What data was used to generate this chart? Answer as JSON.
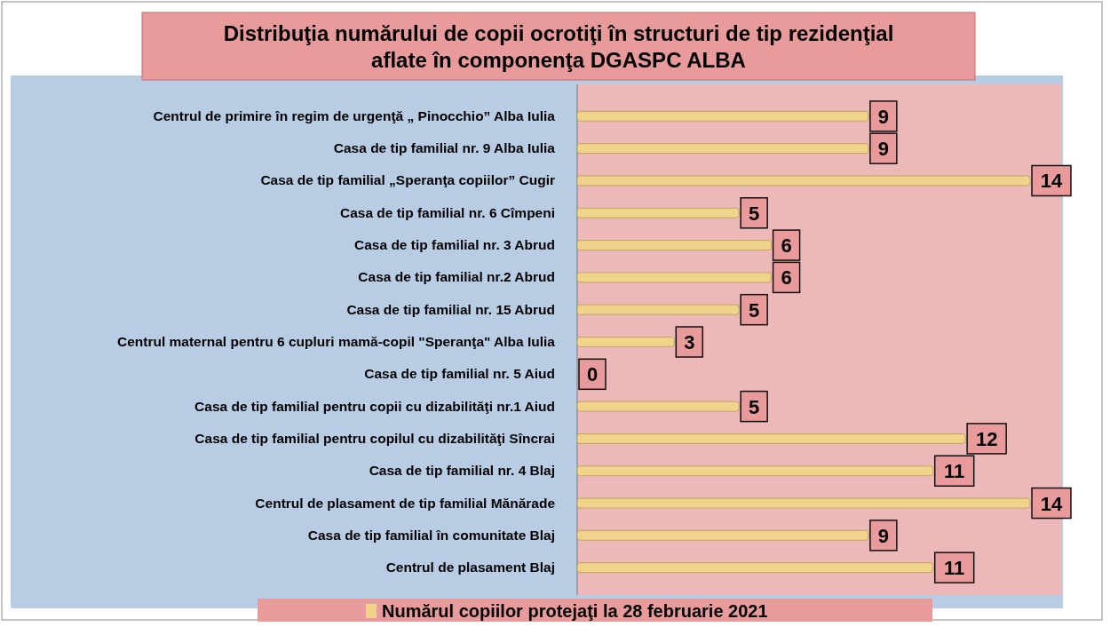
{
  "chart_data": {
    "type": "bar",
    "orientation": "horizontal",
    "title": "Distribuţia numărului de copii ocrotiţi în structuri de tip rezidenţial aflate în componenţa DGASPC ALBA",
    "categories": [
      "Centrul de primire în regim de urgenţă „ Pinocchio” Alba Iulia",
      "Casa de tip familial  nr. 9  Alba Iulia",
      "Casa de tip familial „Speranţa copiilor” Cugir",
      "Casa de tip familial nr. 6 Cîmpeni",
      "Casa de tip familial nr. 3 Abrud",
      "Casa de tip familial nr.2 Abrud",
      "Casa de tip familial nr. 15 Abrud",
      "Centrul maternal pentru 6 cupluri mamă-copil \"Speranţa\" Alba Iulia",
      "Casa de tip familial nr. 5 Aiud",
      "Casa de tip familial pentru copii cu dizabilităţi nr.1 Aiud",
      "Casa de tip familial pentru copilul cu dizabilităţi Sîncrai",
      "Casa de tip familial nr. 4 Blaj",
      "Centrul de plasament de tip familial Mănărade",
      "Casa de tip familial în comunitate Blaj",
      "Centrul de plasament Blaj"
    ],
    "series": [
      {
        "name": "Numărul copiilor protejaţi la 28 februarie 2021",
        "color": "#f0d48c",
        "values": [
          9,
          9,
          14,
          5,
          6,
          6,
          5,
          3,
          0,
          5,
          12,
          11,
          14,
          9,
          11
        ]
      }
    ],
    "data_labels": true,
    "legend": "bottom",
    "grid": false
  }
}
